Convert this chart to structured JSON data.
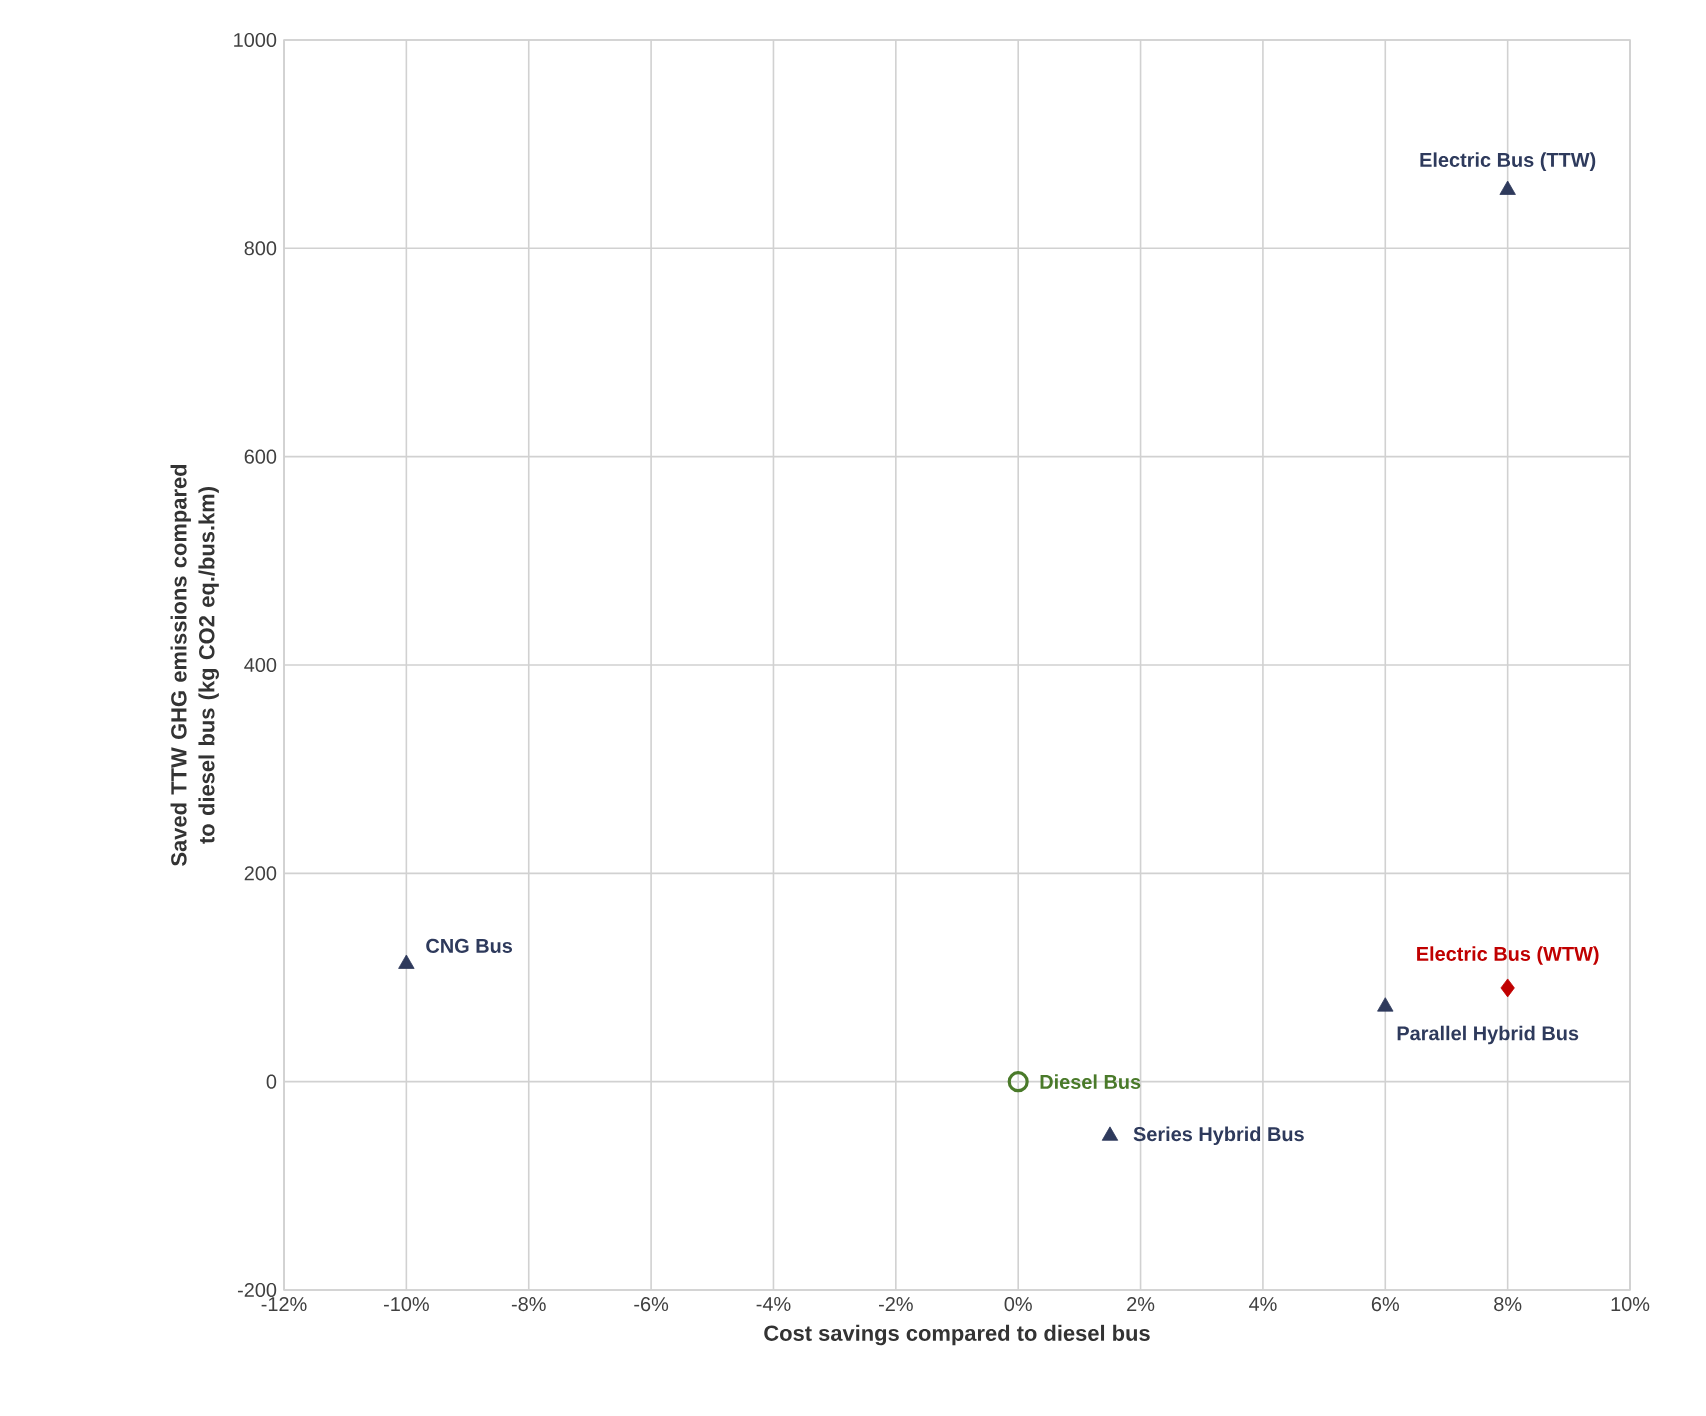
{
  "chart_data": {
    "type": "scatter",
    "xlabel": "Cost savings compared to diesel bus",
    "ylabel": "Saved TTW GHG emissions compared to  diesel bus (kg CO2 eq./bus.km)",
    "series": [
      {
        "name": "Electric Bus (TTW)",
        "color": "#2e3a5c",
        "marker": "triangle",
        "x": [
          8
        ],
        "values": [
          856
        ]
      },
      {
        "name": "CNG Bus",
        "color": "#2e3a5c",
        "marker": "triangle",
        "x": [
          -10
        ],
        "values": [
          113
        ]
      },
      {
        "name": "Diesel Bus",
        "color": "#4a7a2a",
        "marker": "circle",
        "x": [
          0
        ],
        "values": [
          0
        ]
      },
      {
        "name": "Series Hybrid Bus",
        "color": "#2e3a5c",
        "marker": "triangle",
        "x": [
          1.5
        ],
        "values": [
          -52
        ]
      },
      {
        "name": "Parallel Hybrid Bus",
        "color": "#2e3a5c",
        "marker": "triangle",
        "x": [
          6
        ],
        "values": [
          72
        ]
      },
      {
        "name": "Electric Bus (WTW)",
        "color": "#c00000",
        "marker": "diamond",
        "x": [
          8
        ],
        "values": [
          90
        ]
      }
    ],
    "xlim": [
      -12,
      10
    ],
    "xticks": [
      {
        "value": -12,
        "label": "-12%"
      },
      {
        "value": -10,
        "label": "-10%"
      },
      {
        "value": -8,
        "label": "-8%"
      },
      {
        "value": -6,
        "label": "-6%"
      },
      {
        "value": -4,
        "label": "-4%"
      },
      {
        "value": -2,
        "label": "-2%"
      },
      {
        "value": 0,
        "label": "0%"
      },
      {
        "value": 2,
        "label": "2%"
      },
      {
        "value": 4,
        "label": "4%"
      },
      {
        "value": 6,
        "label": "6%"
      },
      {
        "value": 8,
        "label": "8%"
      },
      {
        "value": 10,
        "label": "10%"
      }
    ],
    "ylim": [
      -200,
      1000
    ],
    "yticks": [
      -200,
      0,
      200,
      400,
      600,
      800,
      1000
    ],
    "grid": true,
    "legend": false
  }
}
